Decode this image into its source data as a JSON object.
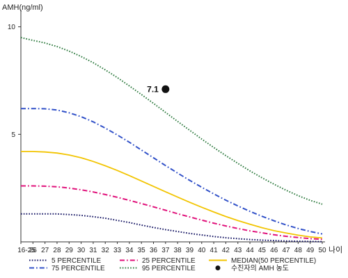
{
  "chart_data": {
    "type": "line",
    "ylabel": "AMH(ng/ml)",
    "xlabel": "나이",
    "ylim": [
      0,
      10.6
    ],
    "yticks": [
      5,
      10
    ],
    "categories": [
      "16-25",
      "26",
      "27",
      "28",
      "29",
      "30",
      "31",
      "32",
      "33",
      "34",
      "35",
      "36",
      "37",
      "38",
      "39",
      "40",
      "41",
      "42",
      "43",
      "44",
      "45",
      "46",
      "47",
      "48",
      "49",
      "50"
    ],
    "series": [
      {
        "name": "5 PERCENTILE",
        "color": "#101060",
        "style": "dotted",
        "values": [
          1.3,
          1.3,
          1.3,
          1.3,
          1.27,
          1.23,
          1.17,
          1.1,
          1.0,
          0.9,
          0.78,
          0.67,
          0.57,
          0.48,
          0.39,
          0.32,
          0.25,
          0.19,
          0.15,
          0.11,
          0.08,
          0.06,
          0.04,
          0.03,
          0.02,
          0.01
        ]
      },
      {
        "name": "25 PERCENTILE",
        "color": "#e0107a",
        "style": "dashdot",
        "values": [
          2.6,
          2.6,
          2.59,
          2.56,
          2.5,
          2.42,
          2.32,
          2.2,
          2.07,
          1.93,
          1.78,
          1.63,
          1.47,
          1.31,
          1.16,
          1.01,
          0.87,
          0.74,
          0.62,
          0.51,
          0.42,
          0.33,
          0.26,
          0.2,
          0.15,
          0.12
        ]
      },
      {
        "name": "MEDIAN(50 PERCENTILE)",
        "color": "#f2c400",
        "style": "solid",
        "values": [
          4.2,
          4.2,
          4.18,
          4.13,
          4.04,
          3.91,
          3.74,
          3.54,
          3.32,
          3.08,
          2.83,
          2.58,
          2.33,
          2.08,
          1.84,
          1.61,
          1.39,
          1.18,
          0.99,
          0.82,
          0.66,
          0.52,
          0.41,
          0.31,
          0.23,
          0.18
        ]
      },
      {
        "name": "75 PERCENTILE",
        "color": "#3050c8",
        "style": "dashdot",
        "values": [
          6.2,
          6.2,
          6.19,
          6.13,
          6.0,
          5.82,
          5.58,
          5.29,
          4.97,
          4.63,
          4.27,
          3.91,
          3.55,
          3.2,
          2.86,
          2.54,
          2.23,
          1.94,
          1.67,
          1.42,
          1.19,
          0.98,
          0.79,
          0.62,
          0.48,
          0.37
        ]
      },
      {
        "name": "95 PERCENTILE",
        "color": "#2d7a3e",
        "style": "dotted",
        "values": [
          9.5,
          9.37,
          9.25,
          9.08,
          8.87,
          8.62,
          8.33,
          8.0,
          7.64,
          7.25,
          6.85,
          6.44,
          6.02,
          5.6,
          5.19,
          4.78,
          4.39,
          4.01,
          3.65,
          3.3,
          2.98,
          2.68,
          2.4,
          2.15,
          1.93,
          1.75
        ]
      }
    ],
    "points": [
      {
        "name": "수진자의 AMH 농도",
        "x": "37",
        "y": 7.1,
        "label": "7.1"
      }
    ],
    "legend": [
      {
        "text": "5 PERCENTILE"
      },
      {
        "text": "25 PERCENTILE"
      },
      {
        "text": "MEDIAN(50 PERCENTILE)"
      },
      {
        "text": "75 PERCENTILE"
      },
      {
        "text": "95 PERCENTILE"
      },
      {
        "text": "수진자의 AMH 농도"
      }
    ]
  }
}
